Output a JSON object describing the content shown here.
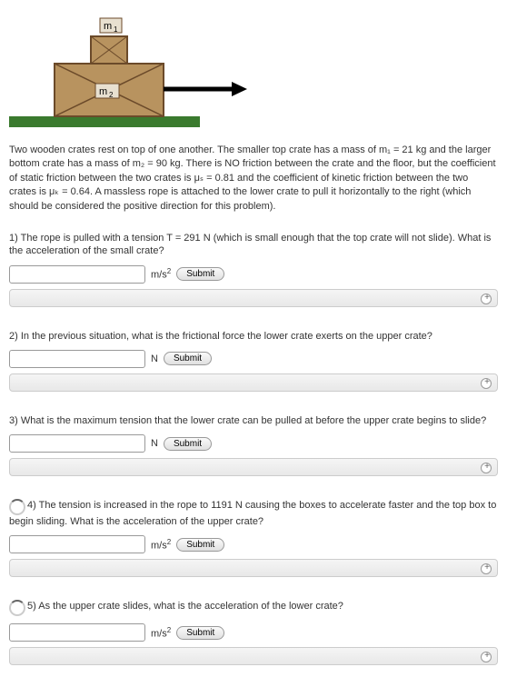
{
  "diagram": {
    "m1_label": "m₁",
    "m2_label": "m₂",
    "ground_color": "#3a7a2e",
    "crate_fill": "#b8935f",
    "crate_stroke": "#6b4a2a",
    "arrow_color": "#000000"
  },
  "problem": {
    "text": "Two wooden crates rest on top of one another. The smaller top crate has a mass of m₁ = 21 kg and the larger bottom crate has a mass of m₂ = 90 kg. There is NO friction between the crate and the floor, but the coefficient of static friction between the two crates is μₛ = 0.81 and the coefficient of kinetic friction between the two crates is μₖ = 0.64. A massless rope is attached to the lower crate to pull it horizontally to the right (which should be considered the positive direction for this problem)."
  },
  "questions": [
    {
      "text": "1) The rope is pulled with a tension T = 291 N (which is small enough that the top crate will not slide). What is the acceleration of the small crate?",
      "unit": "m/s²",
      "loading": false
    },
    {
      "text": "2) In the previous situation, what is the frictional force the lower crate exerts on the upper crate?",
      "unit": "N",
      "loading": false
    },
    {
      "text": "3) What is the maximum tension that the lower crate can be pulled at before the upper crate begins to slide?",
      "unit": "N",
      "loading": false
    },
    {
      "text": "4) The tension is increased in the rope to 1191 N causing the boxes to accelerate faster and the top box to begin sliding. What is the acceleration of the upper crate?",
      "unit": "m/s²",
      "loading": true
    },
    {
      "text": "5) As the upper crate slides, what is the acceleration of the lower crate?",
      "unit": "m/s²",
      "loading": true
    }
  ],
  "submit_label": "Submit"
}
